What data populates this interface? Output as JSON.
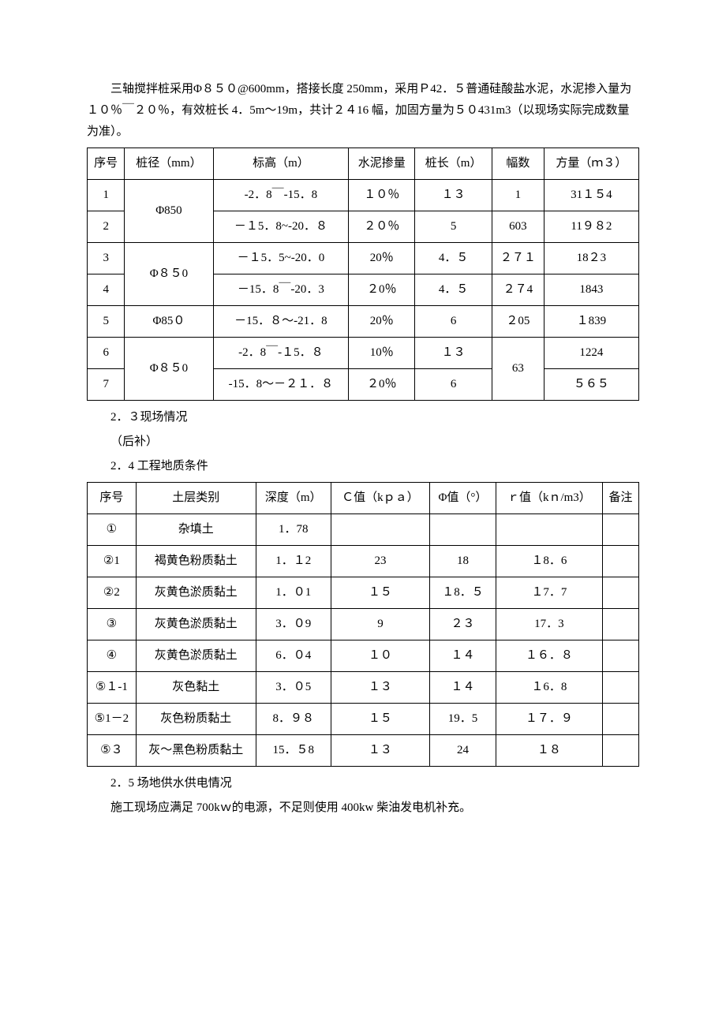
{
  "intro_p1": "三轴搅拌桩采用Φ８５０@600mm，搭接长度 250mm，采用Ｐ42．５普通硅酸盐水泥，水泥掺入量为１０％￣２０％，有效桩长 4．5m～19m，共计２４16 幅，加固方量为５０431m3（以现场实际完成数量为准）。",
  "t1": {
    "h": [
      "序号",
      "桩径（mm）",
      "标高（m）",
      "水泥掺量",
      "桩长（m）",
      "幅数",
      "方量（ｍ３）"
    ],
    "rows": [
      {
        "no": "1",
        "dia": "Φ850",
        "elev": "-2．8￣-15．8",
        "mix": "１０％",
        "len": "１３",
        "cnt": "1",
        "vol": "31１５4"
      },
      {
        "no": "2",
        "dia": "",
        "elev": "－１5．8~-20．８",
        "mix": "２０％",
        "len": "5",
        "cnt": "603",
        "vol": "11９８2"
      },
      {
        "no": "3",
        "dia": "Φ８５0",
        "elev": "－１5．5~-20．0",
        "mix": "20％",
        "len": "4．５",
        "cnt": "２７１",
        "vol": "18２3"
      },
      {
        "no": "4",
        "dia": "",
        "elev": "－15．8￣-20．3",
        "mix": "２0％",
        "len": "4．５",
        "cnt": "２７4",
        "vol": "1843"
      },
      {
        "no": "5",
        "dia": "Φ85０",
        "elev": "－15．８～-21．8",
        "mix": "20％",
        "len": "6",
        "cnt": "２05",
        "vol": "１839"
      },
      {
        "no": "6",
        "dia": "Φ８５0",
        "elev": "-2．8￣-１5．８",
        "mix": "10％",
        "len": "１３",
        "cnt": "63",
        "vol": "1224"
      },
      {
        "no": "7",
        "dia": "",
        "elev": "-15．8～－２１．８",
        "mix": "２0％",
        "len": "6",
        "cnt": "",
        "vol": "５６５"
      }
    ]
  },
  "sec23": "2．３现场情况",
  "sec23_sub": "（后补）",
  "sec24": "2．4 工程地质条件",
  "t2": {
    "h": [
      "序号",
      "土层类别",
      "深度（m）",
      "Ｃ值（kｐａ）",
      "Φ值（°）",
      "ｒ值（kｎ/m3）",
      "备注"
    ],
    "rows": [
      {
        "no": "①",
        "type": "杂填土",
        "depth": "1．78",
        "c": "",
        "phi": "",
        "r": "",
        "note": ""
      },
      {
        "no": "②1",
        "type": "褐黄色粉质黏土",
        "depth": "1．１2",
        "c": "23",
        "phi": "18",
        "r": "１8．6",
        "note": ""
      },
      {
        "no": "②2",
        "type": "灰黄色淤质黏土",
        "depth": "1．０1",
        "c": "１５",
        "phi": "１8．５",
        "r": "１7．7",
        "note": ""
      },
      {
        "no": "③",
        "type": "灰黄色淤质黏土",
        "depth": "3．０9",
        "c": "9",
        "phi": "２３",
        "r": "17．3",
        "note": ""
      },
      {
        "no": "④",
        "type": "灰黄色淤质黏土",
        "depth": "6．０4",
        "c": "１０",
        "phi": "１４",
        "r": "１６．８",
        "note": ""
      },
      {
        "no": "⑤１-1",
        "type": "灰色黏土",
        "depth": "3．０5",
        "c": "１３",
        "phi": "１４",
        "r": "１6．8",
        "note": ""
      },
      {
        "no": "⑤1－2",
        "type": "灰色粉质黏土",
        "depth": "8．９８",
        "c": "１５",
        "phi": "19．5",
        "r": "１７．９",
        "note": ""
      },
      {
        "no": "⑤３",
        "type": "灰～黑色粉质黏土",
        "depth": "15．５8",
        "c": "１３",
        "phi": "24",
        "r": "１８",
        "note": ""
      }
    ]
  },
  "sec25": "2．5 场地供水供电情况",
  "sec25_p": "施工现场应满足 700kｗ的电源，不足则使用 400kw 柴油发电机补充。"
}
